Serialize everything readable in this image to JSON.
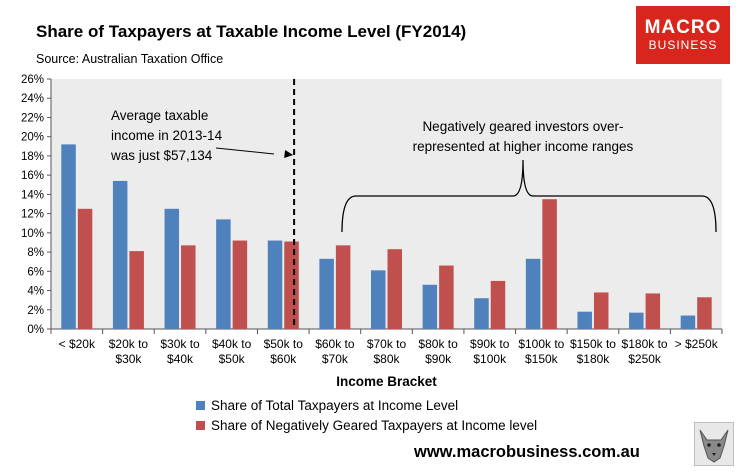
{
  "header": {
    "title": "Share of Taxpayers at Taxable Income Level (FY2014)",
    "source": "Source: Australian Taxation Office"
  },
  "logo": {
    "line1": "MACRO",
    "line2": "BUSINESS"
  },
  "footer": {
    "url": "www.macrobusiness.com.au",
    "mascot_icon": "wolf-icon"
  },
  "colors": {
    "series1": "#4f81bd",
    "series2": "#c0504d",
    "plot_bg": "#ececec",
    "logo_bg": "#d9261c"
  },
  "chart_data": {
    "type": "bar",
    "title": "Share of Taxpayers at Taxable Income Level (FY2014)",
    "xlabel": "Income Bracket",
    "ylabel": "",
    "ylim": [
      0,
      26
    ],
    "yticks": [
      "0%",
      "2%",
      "4%",
      "6%",
      "8%",
      "10%",
      "12%",
      "14%",
      "16%",
      "18%",
      "20%",
      "22%",
      "24%",
      "26%"
    ],
    "grid": false,
    "legend_position": "bottom",
    "categories": [
      [
        "< $20k"
      ],
      [
        "$20k to",
        "$30k"
      ],
      [
        "$30k to",
        "$40k"
      ],
      [
        "$40k to",
        "$50k"
      ],
      [
        "$50k to",
        "$60k"
      ],
      [
        "$60k to",
        "$70k"
      ],
      [
        "$70k to",
        "$80k"
      ],
      [
        "$80k to",
        "$90k"
      ],
      [
        "$90k to",
        "$100k"
      ],
      [
        "$100k to",
        "$150k"
      ],
      [
        "$150k to",
        "$180k"
      ],
      [
        "$180k to",
        "$250k"
      ],
      [
        "> $250k"
      ]
    ],
    "series": [
      {
        "name": "Share of Total Taxpayers at Income Level",
        "values": [
          19.2,
          15.4,
          12.5,
          11.4,
          9.2,
          7.3,
          6.1,
          4.6,
          3.2,
          7.3,
          1.8,
          1.7,
          1.4
        ]
      },
      {
        "name": "Share of Negatively Geared Taxpayers at Income level",
        "values": [
          12.5,
          8.1,
          8.7,
          9.2,
          9.1,
          8.7,
          8.3,
          6.6,
          5.0,
          13.5,
          3.8,
          3.7,
          3.3
        ]
      }
    ],
    "annotations": [
      {
        "lines": [
          "Average taxable",
          "income in 2013-14",
          "was just $57,134"
        ]
      },
      {
        "lines": [
          "Negatively geared investors over-",
          "represented at higher income ranges"
        ]
      }
    ],
    "reference_line": {
      "x": 57134,
      "style": "dashed"
    }
  }
}
